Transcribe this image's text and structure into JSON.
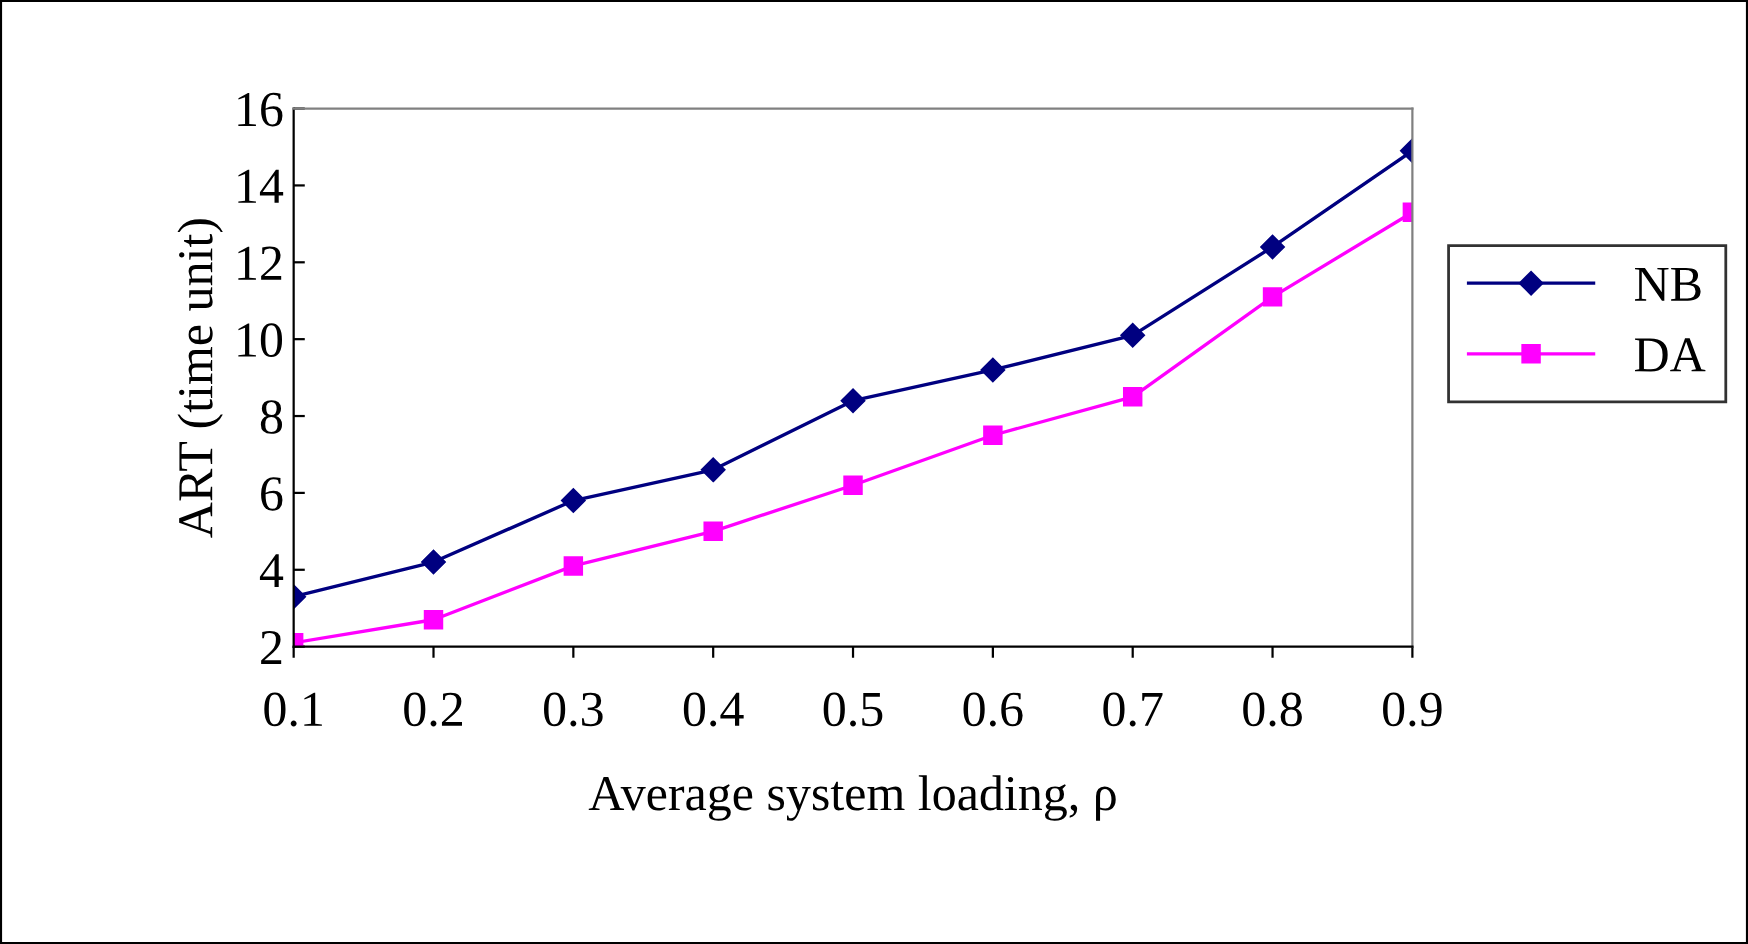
{
  "chart_data": {
    "type": "line",
    "xlabel": "Average system loading, ρ",
    "ylabel": "ART (time unit)",
    "categories": [
      "0.1",
      "0.2",
      "0.3",
      "0.4",
      "0.5",
      "0.6",
      "0.7",
      "0.8",
      "0.9"
    ],
    "series": [
      {
        "name": "NB",
        "color": "#000080",
        "marker": "diamond",
        "values": [
          3.3,
          4.2,
          5.8,
          6.6,
          8.4,
          9.2,
          10.1,
          12.4,
          14.9
        ]
      },
      {
        "name": "DA",
        "color": "#ff00ff",
        "marker": "square",
        "values": [
          2.1,
          2.7,
          4.1,
          5.0,
          6.2,
          7.5,
          8.5,
          11.1,
          13.3
        ]
      }
    ],
    "ylim": [
      2,
      16
    ],
    "yticks": [
      2,
      4,
      6,
      8,
      10,
      12,
      14,
      16
    ],
    "grid": false,
    "legend": "right",
    "line_style": "solid"
  }
}
